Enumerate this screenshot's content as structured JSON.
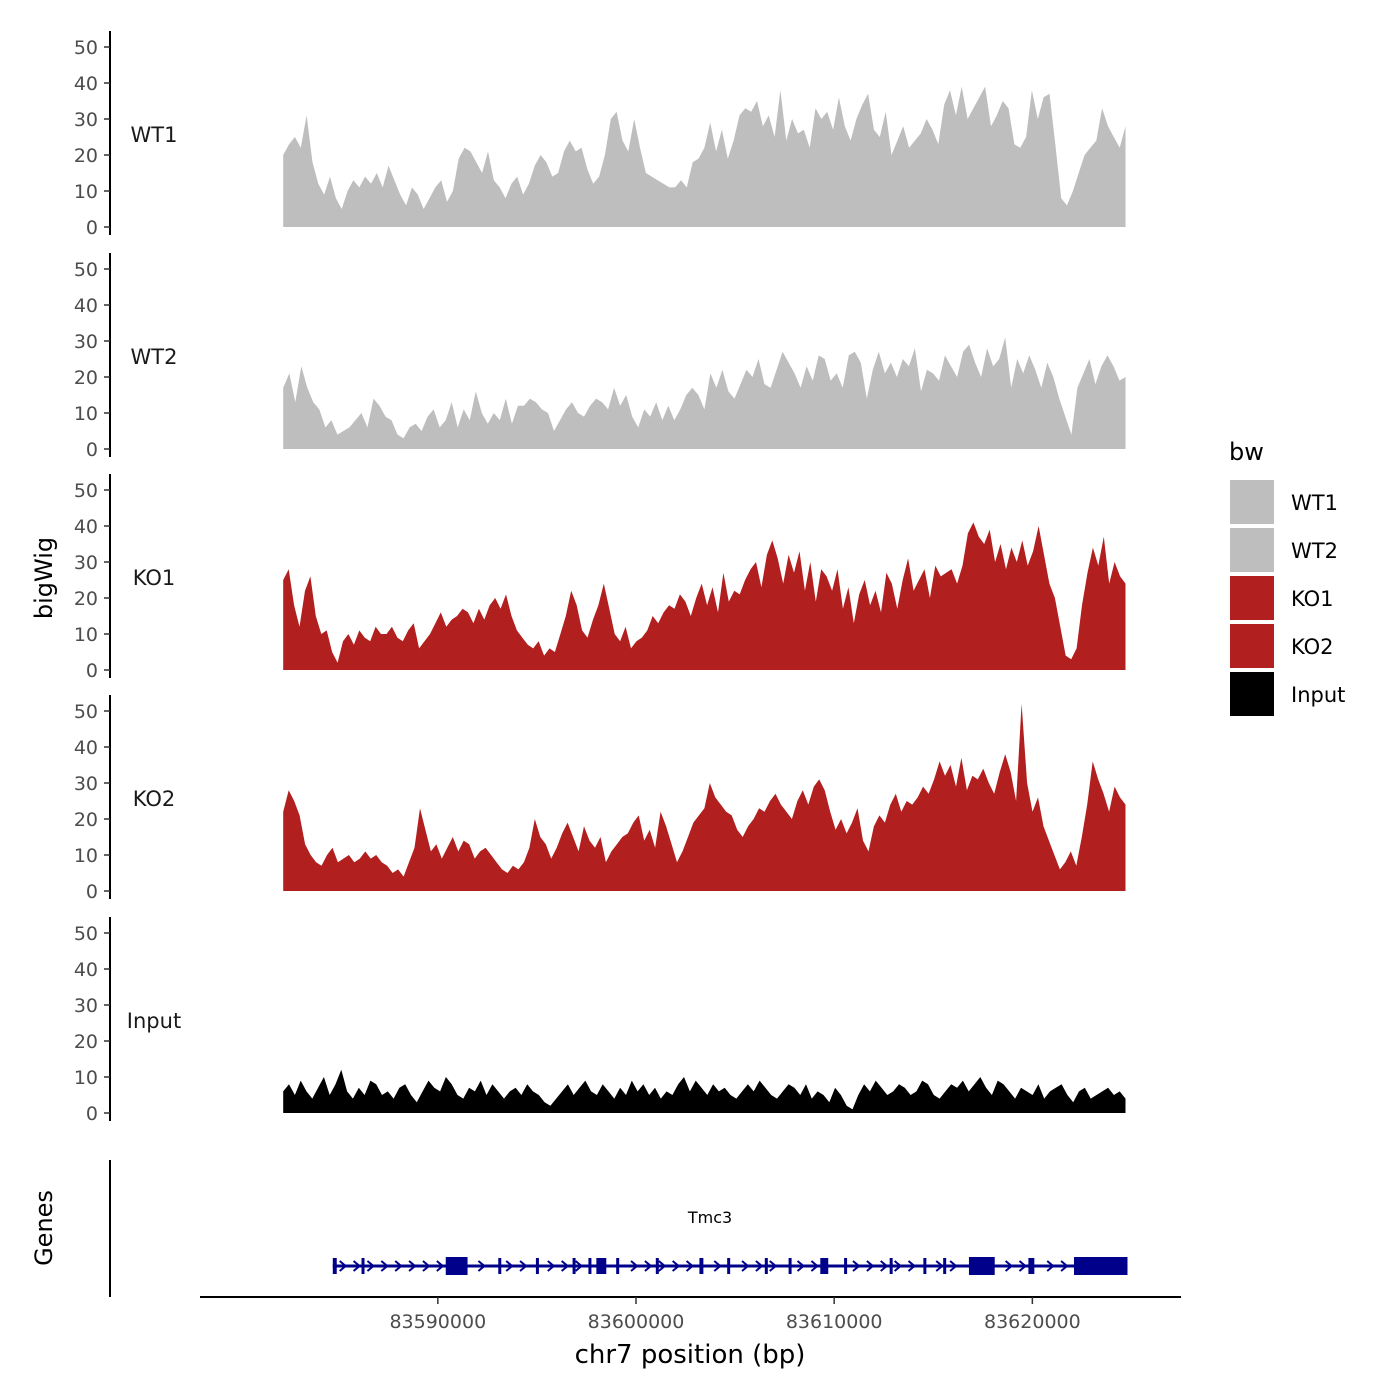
{
  "chart_data": {
    "type": "area",
    "ylabel": "bigWig",
    "xlabel": "chr7 position (bp)",
    "genes_label": "Genes",
    "xlim": [
      83578000,
      83627500
    ],
    "x_ticks": [
      83590000,
      83600000,
      83610000,
      83620000
    ],
    "x_tick_labels": [
      "83590000",
      "83600000",
      "83610000",
      "83620000"
    ],
    "ylim": [
      0,
      55
    ],
    "y_ticks": [
      0,
      10,
      20,
      30,
      40,
      50
    ],
    "y_tick_labels": [
      "0",
      "10",
      "20",
      "30",
      "40",
      "50"
    ],
    "legend": {
      "title": "bw",
      "position": "right",
      "entries": [
        {
          "label": "WT1",
          "color": "#bebebe"
        },
        {
          "label": "WT2",
          "color": "#bebebe"
        },
        {
          "label": "KO1",
          "color": "#b21f1f"
        },
        {
          "label": "KO2",
          "color": "#b21f1f"
        },
        {
          "label": "Input",
          "color": "#000000"
        }
      ]
    },
    "track_x_range": [
      83582200,
      83624700
    ],
    "series": [
      {
        "name": "WT1",
        "color": "#bebebe",
        "step": 500,
        "values": [
          20,
          23,
          25,
          22,
          31,
          18,
          12,
          9,
          14,
          8,
          5,
          10,
          13,
          11,
          14,
          12,
          15,
          11,
          17,
          13,
          9,
          6,
          11,
          9,
          5,
          8,
          11,
          13,
          7,
          10,
          19,
          22,
          21,
          18,
          15,
          21,
          13,
          11,
          8,
          12,
          14,
          9,
          12,
          17,
          20,
          18,
          14,
          15,
          21,
          24,
          21,
          22,
          16,
          12,
          14,
          20,
          30,
          32,
          24,
          21,
          30,
          22,
          15,
          14,
          13,
          12,
          11,
          11,
          13,
          11,
          18,
          19,
          22,
          29,
          21,
          27,
          19,
          24,
          31,
          33,
          32,
          35,
          28,
          31,
          25,
          38,
          24,
          30,
          26,
          27,
          22,
          33,
          30,
          32,
          27,
          36,
          28,
          24,
          30,
          34,
          37,
          27,
          25,
          32,
          20,
          24,
          28,
          22,
          24,
          26,
          30,
          27,
          23,
          34,
          38,
          31,
          39,
          30,
          33,
          36,
          39,
          28,
          31,
          35,
          33,
          23,
          22,
          25,
          38,
          30,
          36,
          37,
          23,
          8,
          6,
          10,
          15,
          20,
          22,
          24,
          33,
          28,
          25,
          22,
          28
        ]
      },
      {
        "name": "WT2",
        "color": "#bebebe",
        "step": 500,
        "values": [
          17,
          21,
          13,
          23,
          17,
          13,
          11,
          6,
          8,
          4,
          5,
          6,
          8,
          10,
          6,
          14,
          12,
          9,
          8,
          4,
          3,
          6,
          7,
          5,
          9,
          11,
          6,
          8,
          13,
          6,
          11,
          8,
          16,
          10,
          7,
          10,
          8,
          14,
          7,
          12,
          12,
          14,
          13,
          11,
          10,
          5,
          8,
          11,
          13,
          10,
          9,
          12,
          14,
          13,
          11,
          17,
          12,
          15,
          9,
          6,
          11,
          9,
          13,
          8,
          12,
          8,
          11,
          15,
          17,
          15,
          11,
          21,
          17,
          22,
          16,
          14,
          18,
          22,
          20,
          25,
          18,
          17,
          22,
          27,
          24,
          21,
          17,
          23,
          19,
          26,
          25,
          19,
          21,
          17,
          26,
          27,
          24,
          14,
          22,
          27,
          21,
          24,
          20,
          25,
          23,
          28,
          16,
          22,
          21,
          19,
          26,
          23,
          20,
          27,
          29,
          24,
          20,
          28,
          23,
          25,
          31,
          17,
          25,
          21,
          26,
          22,
          17,
          24,
          20,
          14,
          9,
          4,
          17,
          21,
          25,
          18,
          23,
          26,
          23,
          19,
          20
        ]
      },
      {
        "name": "KO1",
        "color": "#b21f1f",
        "step": 500,
        "values": [
          25,
          28,
          18,
          12,
          22,
          26,
          15,
          10,
          11,
          5,
          2,
          8,
          10,
          7,
          11,
          9,
          8,
          12,
          10,
          10,
          12,
          9,
          8,
          11,
          13,
          6,
          8,
          10,
          13,
          16,
          12,
          14,
          15,
          17,
          16,
          13,
          17,
          14,
          18,
          20,
          17,
          21,
          15,
          11,
          9,
          7,
          6,
          8,
          4,
          6,
          5,
          10,
          15,
          22,
          18,
          11,
          9,
          14,
          18,
          24,
          17,
          10,
          8,
          12,
          6,
          8,
          9,
          11,
          15,
          13,
          16,
          18,
          17,
          21,
          19,
          15,
          20,
          24,
          18,
          23,
          16,
          27,
          19,
          22,
          21,
          25,
          28,
          30,
          23,
          32,
          36,
          31,
          24,
          32,
          27,
          33,
          22,
          30,
          19,
          28,
          26,
          22,
          28,
          17,
          23,
          13,
          21,
          25,
          18,
          22,
          16,
          27,
          24,
          17,
          25,
          31,
          22,
          25,
          28,
          20,
          29,
          26,
          27,
          28,
          24,
          29,
          38,
          41,
          37,
          35,
          39,
          30,
          35,
          28,
          34,
          30,
          36,
          29,
          33,
          40,
          32,
          24,
          20,
          12,
          4,
          3,
          6,
          18,
          27,
          34,
          29,
          37,
          24,
          30,
          26,
          24
        ]
      },
      {
        "name": "KO2",
        "color": "#b21f1f",
        "step": 500,
        "values": [
          22,
          28,
          25,
          21,
          13,
          10,
          8,
          7,
          10,
          12,
          8,
          9,
          10,
          8,
          9,
          11,
          9,
          10,
          8,
          7,
          5,
          6,
          4,
          8,
          12,
          23,
          17,
          11,
          13,
          9,
          12,
          15,
          11,
          14,
          13,
          9,
          11,
          12,
          10,
          8,
          6,
          5,
          7,
          6,
          8,
          12,
          20,
          15,
          13,
          9,
          12,
          16,
          19,
          15,
          11,
          18,
          14,
          12,
          15,
          8,
          11,
          13,
          15,
          16,
          19,
          21,
          14,
          17,
          12,
          22,
          18,
          13,
          8,
          11,
          15,
          19,
          21,
          23,
          30,
          26,
          24,
          22,
          21,
          17,
          15,
          18,
          20,
          23,
          22,
          25,
          27,
          24,
          22,
          20,
          25,
          28,
          24,
          29,
          31,
          28,
          22,
          17,
          20,
          16,
          19,
          23,
          14,
          11,
          18,
          21,
          19,
          24,
          27,
          22,
          25,
          24,
          26,
          29,
          27,
          31,
          36,
          32,
          35,
          29,
          37,
          28,
          32,
          31,
          34,
          30,
          27,
          33,
          38,
          33,
          25,
          52,
          30,
          22,
          26,
          18,
          14,
          10,
          6,
          8,
          11,
          7,
          15,
          24,
          36,
          31,
          27,
          22,
          29,
          26,
          24
        ]
      },
      {
        "name": "Input",
        "color": "#000000",
        "step": 500,
        "values": [
          6,
          8,
          5,
          9,
          6,
          4,
          7,
          10,
          5,
          8,
          12,
          6,
          4,
          7,
          5,
          9,
          8,
          5,
          6,
          4,
          7,
          8,
          5,
          3,
          6,
          9,
          7,
          6,
          10,
          8,
          5,
          4,
          7,
          6,
          9,
          5,
          8,
          6,
          4,
          6,
          7,
          5,
          8,
          6,
          5,
          3,
          2,
          4,
          6,
          8,
          5,
          7,
          9,
          6,
          5,
          8,
          6,
          4,
          7,
          5,
          9,
          6,
          8,
          5,
          7,
          4,
          6,
          5,
          8,
          10,
          6,
          9,
          7,
          5,
          8,
          6,
          7,
          5,
          4,
          6,
          8,
          6,
          9,
          7,
          5,
          4,
          6,
          8,
          7,
          5,
          8,
          4,
          6,
          5,
          3,
          7,
          5,
          2,
          1,
          5,
          8,
          6,
          9,
          7,
          5,
          6,
          8,
          7,
          5,
          6,
          9,
          8,
          5,
          4,
          6,
          8,
          7,
          9,
          6,
          8,
          10,
          7,
          5,
          9,
          8,
          6,
          4,
          7,
          6,
          5,
          8,
          4,
          6,
          7,
          8,
          5,
          3,
          6,
          7,
          4,
          5,
          6,
          7,
          5,
          6,
          4
        ]
      }
    ],
    "gene_track": {
      "gene_name": "Tmc3",
      "strand": "+",
      "color": "#00008b",
      "start": 83584700,
      "end": 83624800,
      "exons": [
        {
          "start": 83584700,
          "end": 83584900
        },
        {
          "start": 83586150,
          "end": 83586300
        },
        {
          "start": 83590400,
          "end": 83591500
        },
        {
          "start": 83593050,
          "end": 83593150
        },
        {
          "start": 83594950,
          "end": 83595050
        },
        {
          "start": 83596800,
          "end": 83596900
        },
        {
          "start": 83597600,
          "end": 83597700
        },
        {
          "start": 83598000,
          "end": 83598500
        },
        {
          "start": 83599000,
          "end": 83599100
        },
        {
          "start": 83601000,
          "end": 83601100
        },
        {
          "start": 83603200,
          "end": 83603400
        },
        {
          "start": 83604600,
          "end": 83604700
        },
        {
          "start": 83606500,
          "end": 83606600
        },
        {
          "start": 83607700,
          "end": 83607800
        },
        {
          "start": 83609300,
          "end": 83609700
        },
        {
          "start": 83610500,
          "end": 83610600
        },
        {
          "start": 83612800,
          "end": 83612900
        },
        {
          "start": 83614500,
          "end": 83614600
        },
        {
          "start": 83615500,
          "end": 83615600
        },
        {
          "start": 83616800,
          "end": 83618100
        },
        {
          "start": 83619800,
          "end": 83620100
        },
        {
          "start": 83622100,
          "end": 83624800
        }
      ]
    }
  }
}
